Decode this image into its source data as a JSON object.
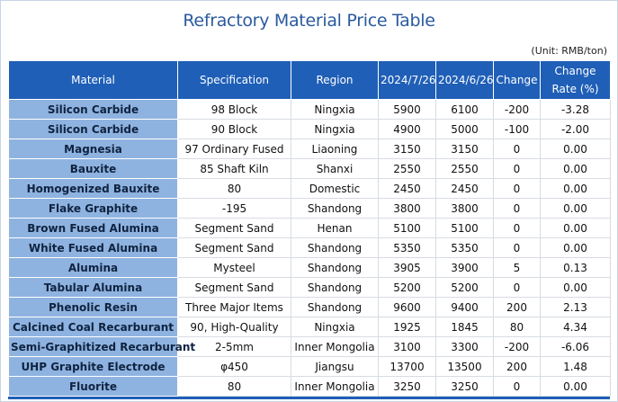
{
  "title": "Refractory Material Price Table",
  "unit": "(Unit: RMB/ton)",
  "headers": [
    "Material",
    "Specification",
    "Region",
    "2024/7/26",
    "2024/6/26",
    "Change",
    "Change Rate (%)"
  ],
  "rows": [
    [
      "Silicon Carbide",
      "98 Block",
      "Ningxia",
      "5900",
      "6100",
      "-200",
      "-3.28"
    ],
    [
      "Silicon Carbide",
      "90 Block",
      "Ningxia",
      "4900",
      "5000",
      "-100",
      "-2.00"
    ],
    [
      "Magnesia",
      "97 Ordinary Fused",
      "Liaoning",
      "3150",
      "3150",
      "0",
      "0.00"
    ],
    [
      "Bauxite",
      "85 Shaft Kiln",
      "Shanxi",
      "2550",
      "2550",
      "0",
      "0.00"
    ],
    [
      "Homogenized Bauxite",
      "80",
      "Domestic",
      "2450",
      "2450",
      "0",
      "0.00"
    ],
    [
      "Flake Graphite",
      "-195",
      "Shandong",
      "3800",
      "3800",
      "0",
      "0.00"
    ],
    [
      "Brown Fused Alumina",
      "Segment Sand",
      "Henan",
      "5100",
      "5100",
      "0",
      "0.00"
    ],
    [
      "White Fused Alumina",
      "Segment Sand",
      "Shandong",
      "5350",
      "5350",
      "0",
      "0.00"
    ],
    [
      "Alumina",
      "Mysteel",
      "Shandong",
      "3905",
      "3900",
      "5",
      "0.13"
    ],
    [
      "Tabular Alumina",
      "Segment Sand",
      "Shandong",
      "5200",
      "5200",
      "0",
      "0.00"
    ],
    [
      "Phenolic Resin",
      "Three Major Items",
      "Shandong",
      "9600",
      "9400",
      "200",
      "2.13"
    ],
    [
      "Calcined Coal Recarburant",
      "90, High-Quality",
      "Ningxia",
      "1925",
      "1845",
      "80",
      "4.34"
    ],
    [
      "Semi-Graphitized Recarburant",
      "2-5mm",
      "Inner Mongolia",
      "3100",
      "3300",
      "-200",
      "-6.06"
    ],
    [
      "UHP Graphite Electrode",
      "φ450",
      "Jiangsu",
      "13700",
      "13500",
      "200",
      "1.48"
    ],
    [
      "Fluorite",
      "80",
      "Inner Mongolia",
      "3250",
      "3250",
      "0",
      "0.00"
    ]
  ]
}
